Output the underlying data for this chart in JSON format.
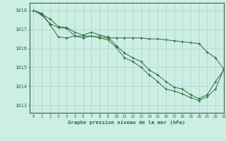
{
  "title": "Graphe pression niveau de la mer (hPa)",
  "bg_color": "#cceee4",
  "grid_color": "#aad4c8",
  "line_color": "#2d6e3e",
  "xlim": [
    -0.5,
    23
  ],
  "ylim": [
    1012.6,
    1018.4
  ],
  "yticks": [
    1013,
    1014,
    1015,
    1016,
    1017,
    1018
  ],
  "xticks": [
    0,
    1,
    2,
    3,
    4,
    5,
    6,
    7,
    8,
    9,
    10,
    11,
    12,
    13,
    14,
    15,
    16,
    17,
    18,
    19,
    20,
    21,
    22,
    23
  ],
  "series1": [
    1018.0,
    1017.8,
    1017.55,
    1017.15,
    1017.1,
    1016.85,
    1016.7,
    1016.85,
    1016.7,
    1016.6,
    1016.15,
    1015.75,
    1015.5,
    1015.3,
    1014.85,
    1014.6,
    1014.25,
    1013.95,
    1013.85,
    1013.55,
    1013.35,
    1013.55,
    1014.25,
    1014.85
  ],
  "series2": [
    1018.0,
    1017.75,
    1017.3,
    1017.1,
    1017.05,
    1016.65,
    1016.55,
    1016.65,
    1016.55,
    1016.45,
    1016.05,
    1015.5,
    1015.3,
    1015.0,
    1014.6,
    1014.25,
    1013.85,
    1013.75,
    1013.6,
    1013.4,
    1013.25,
    1013.45,
    1013.85,
    1014.9
  ],
  "series3": [
    1018.0,
    1017.85,
    1017.25,
    1016.6,
    1016.55,
    1016.65,
    1016.65,
    1016.65,
    1016.6,
    1016.55,
    1016.55,
    1016.55,
    1016.55,
    1016.55,
    1016.5,
    1016.5,
    1016.45,
    1016.4,
    1016.35,
    1016.3,
    1016.25,
    1015.8,
    1015.5,
    1014.9
  ]
}
